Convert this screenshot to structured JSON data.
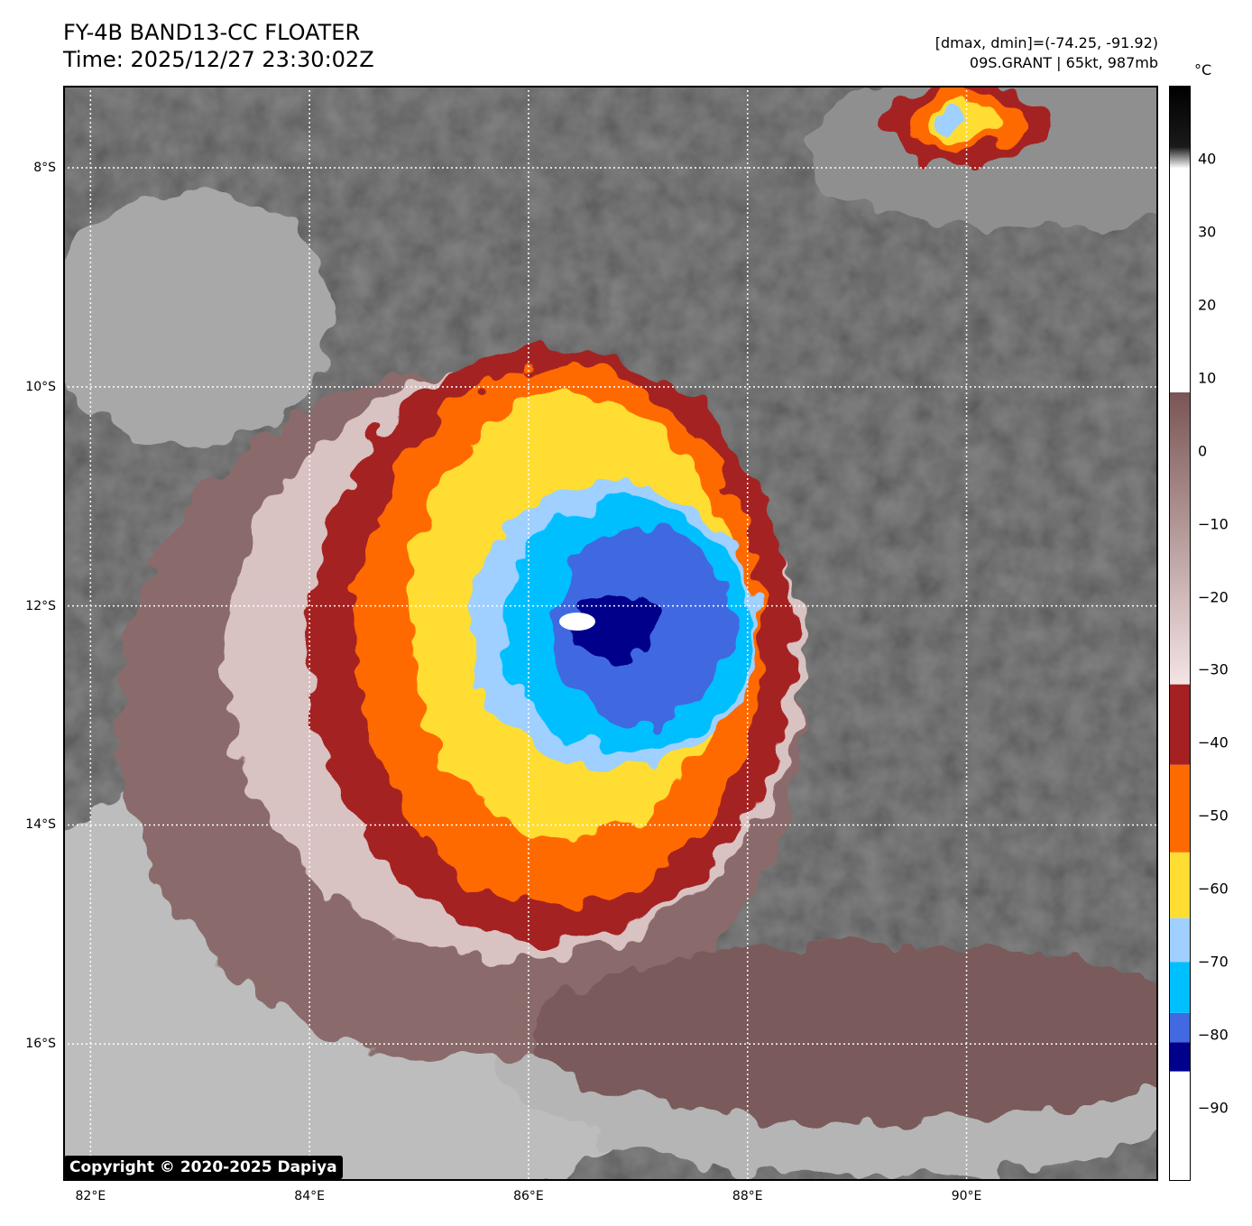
{
  "header": {
    "title_line1": "FY-4B BAND13-CC FLOATER",
    "title_line2": "Time: 2025/12/27 23:30:02Z",
    "info_line1": "[dmax, dmin]=(-74.25, -91.92)",
    "info_line2": "09S.GRANT | 65kt, 987mb"
  },
  "map": {
    "lon_min": 81.75,
    "lon_max": 91.75,
    "lat_min": -17.25,
    "lat_max": -7.25,
    "lon_ticks": [
      {
        "value": 82,
        "label": "82°E"
      },
      {
        "value": 84,
        "label": "84°E"
      },
      {
        "value": 86,
        "label": "86°E"
      },
      {
        "value": 88,
        "label": "88°E"
      },
      {
        "value": 90,
        "label": "90°E"
      }
    ],
    "lat_ticks": [
      {
        "value": -8,
        "label": "8°S"
      },
      {
        "value": -10,
        "label": "10°S"
      },
      {
        "value": -12,
        "label": "12°S"
      },
      {
        "value": -14,
        "label": "14°S"
      },
      {
        "value": -16,
        "label": "16°S"
      }
    ],
    "storm_center_lon": 86.4,
    "storm_center_lat": -12.1
  },
  "colorbar": {
    "unit": "°C",
    "min": -100,
    "max": 50,
    "ticks": [
      "40",
      "30",
      "20",
      "10",
      "0",
      "−10",
      "−20",
      "−30",
      "−40",
      "−50",
      "−60",
      "−70",
      "−80",
      "−90"
    ],
    "tick_values": [
      40,
      30,
      20,
      10,
      0,
      -10,
      -20,
      -30,
      -40,
      -50,
      -60,
      -70,
      -80,
      -90
    ],
    "bands": [
      {
        "from": -100,
        "to": -85,
        "color": "#ffffff"
      },
      {
        "from": -85,
        "to": -81,
        "color": "#00008b"
      },
      {
        "from": -81,
        "to": -77,
        "color": "#4169e1"
      },
      {
        "from": -77,
        "to": -70,
        "color": "#00bfff"
      },
      {
        "from": -70,
        "to": -64,
        "color": "#9fd0ff"
      },
      {
        "from": -64,
        "to": -55,
        "color": "#ffdd33"
      },
      {
        "from": -55,
        "to": -43,
        "color": "#ff6a00"
      },
      {
        "from": -43,
        "to": -32,
        "color": "#a52020"
      }
    ]
  },
  "copyright": "Copyright © 2020-2025 Dapiya"
}
